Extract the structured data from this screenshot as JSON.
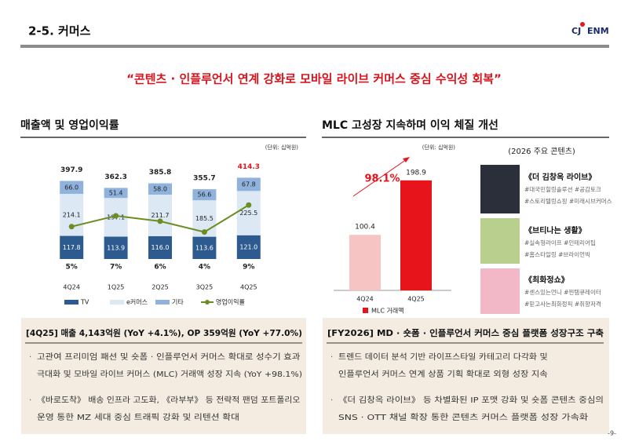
{
  "header": {
    "title": "2-5. 커머스",
    "logo_left": "CJ",
    "logo_right": "ENM"
  },
  "headline": "“콘텐츠 · 인플루언서 연계 강화로 모바일 라이브 커머스 중심 수익성 회복”",
  "chart_data": [
    {
      "type": "bar",
      "stacked": true,
      "title": "매출액 및 영업이익률",
      "unit": "(단위: 십억원)",
      "categories": [
        "4Q24",
        "1Q25",
        "2Q25",
        "3Q25",
        "4Q25"
      ],
      "series": [
        {
          "name": "TV",
          "color": "#2e5b8f",
          "label_color": "#ffffff",
          "values": [
            117.8,
            113.9,
            116.0,
            113.6,
            121.0
          ],
          "value_labels": [
            "117.8",
            "113.9",
            "116.0",
            "113.6",
            "121.0"
          ]
        },
        {
          "name": "e커머스",
          "color": "#dde8f5",
          "label_color": "#222222",
          "values": [
            214.1,
            197.1,
            211.7,
            185.5,
            225.5
          ]
        },
        {
          "name": "기타",
          "color": "#8fb3dd",
          "label_color": "#222222",
          "values": [
            66.0,
            51.4,
            58.0,
            56.6,
            67.8
          ],
          "value_labels": [
            "66.0",
            "51.4",
            "58.0",
            "56.6",
            "67.8"
          ]
        },
        {
          "name": "영업이익률",
          "type": "line",
          "axis": "y2",
          "color": "#6b8e23",
          "values": [
            5,
            7,
            6,
            4,
            9
          ],
          "value_labels": [
            "5%",
            "7%",
            "6%",
            "4%",
            "9%"
          ]
        }
      ],
      "totals": [
        397.9,
        362.3,
        385.8,
        355.7,
        414.3
      ],
      "total_colors": [
        "#222222",
        "#222222",
        "#222222",
        "#222222",
        "#e8141c"
      ],
      "ylim": [
        0,
        440
      ],
      "y2lim": [
        -1,
        15
      ]
    },
    {
      "type": "bar",
      "title": "MLC 고성장 지속하며 이익 체질 개선",
      "unit": "(단위: 십억원)",
      "categories": [
        "4Q24",
        "4Q25"
      ],
      "series": [
        {
          "name": "MLC 거래액",
          "color": "#e8141c",
          "colors": [
            "#f7c4c4",
            "#e8141c"
          ],
          "values": [
            100.4,
            198.9
          ]
        }
      ],
      "annotation": "98.1%",
      "ylim": [
        0,
        210
      ]
    }
  ],
  "contents": {
    "title": "(2026 주요 콘텐츠)",
    "items": [
      {
        "title": "《더 김창옥 라이브》",
        "tags": [
          "#대국민힐링솔루션 #공감토크",
          "#스토리텔링쇼핑 #미래시브커머스"
        ]
      },
      {
        "title": "《브티나는 생활》",
        "tags": [
          "#실속형라이프 #인테리어팁",
          "#홈스타일링 #브라이언빅"
        ]
      },
      {
        "title": "《최화정쇼》",
        "tags": [
          "#센스있는언니 #찐템큐레이터",
          "#믿고사는최화정픽 #취향저격"
        ]
      }
    ]
  },
  "boxes": [
    {
      "title": "[4Q25] 매출 4,143억원 (YoY +4.1%), OP 359억원 (YoY +77.0%)",
      "bullets": [
        [
          "고관여 프리미엄 패션 및 숏폼 · 인플루언서 커머스 확대로 성수기 효과",
          "극대화 및 모바일 라이브 커머스 (MLC) 거래액 성장 지속 (YoY +98.1%)"
        ],
        [
          "《바로도착》 배송 인프라 고도화, 《라부부》 등 전략적 팬덤 포트폴리오",
          "운영 통한 MZ 세대 중심 트래픽 강화 및 리텐션 확대"
        ]
      ]
    },
    {
      "title": "[FY2026] MD · 숏폼 · 인플루언서 커머스 중심 플랫폼 성장구조 구축",
      "bullets": [
        [
          "트렌드 데이터 분석 기반 라이프스타일 카테고리 다각화 및",
          "인플루언서 커머스 연계 상품 기획 확대로 외형 성장 지속"
        ],
        [
          "《더 김창옥 라이브》 등 차별화된 IP 포맷 강화 및 숏폼 콘텐츠 중심의",
          "SNS · OTT 채널 확장 통한 콘텐츠 커머스 플랫폼 성장 가속화"
        ]
      ]
    }
  ],
  "page": "-9-"
}
